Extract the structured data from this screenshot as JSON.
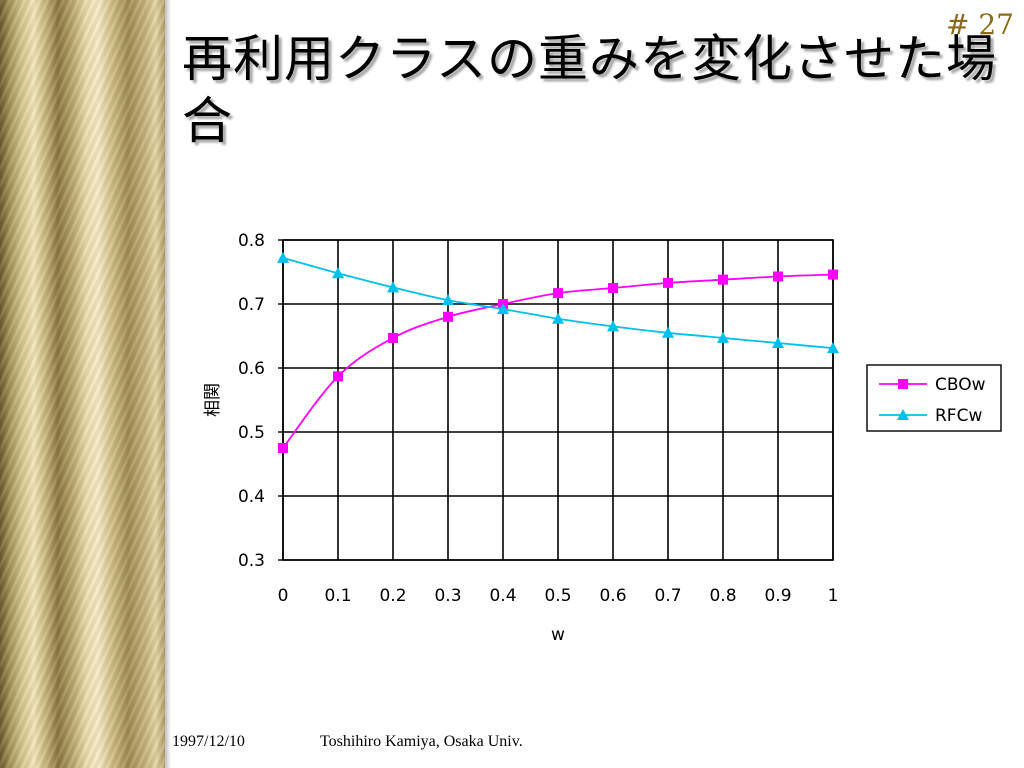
{
  "slide": {
    "title": "再利用クラスの重みを変化させた場合",
    "number": "# 27",
    "footer_date": "1997/12/10",
    "footer_author": "Toshihiro Kamiya, Osaka Univ."
  },
  "chart_data": {
    "type": "line",
    "title": "",
    "xlabel": "w",
    "ylabel": "相関",
    "x": [
      0,
      0.1,
      0.2,
      0.3,
      0.4,
      0.5,
      0.6,
      0.7,
      0.8,
      0.9,
      1
    ],
    "x_tick_labels": [
      "0",
      "0.1",
      "0.2",
      "0.3",
      "0.4",
      "0.5",
      "0.6",
      "0.7",
      "0.8",
      "0.9",
      "1"
    ],
    "ylim": [
      0.3,
      0.8
    ],
    "y_ticks": [
      0.3,
      0.4,
      0.5,
      0.6,
      0.7,
      0.8
    ],
    "y_tick_labels": [
      "0.3",
      "0.4",
      "0.5",
      "0.6",
      "0.7",
      "0.8"
    ],
    "grid": true,
    "legend_position": "right",
    "series": [
      {
        "name": "CBOw",
        "color": "#ff00ff",
        "marker": "square",
        "values": [
          0.475,
          0.587,
          0.647,
          0.68,
          0.7,
          0.717,
          0.725,
          0.733,
          0.738,
          0.743,
          0.746
        ]
      },
      {
        "name": "RFCw",
        "color": "#00c0ee",
        "marker": "triangle",
        "values": [
          0.772,
          0.748,
          0.726,
          0.706,
          0.692,
          0.677,
          0.665,
          0.655,
          0.647,
          0.639,
          0.631
        ]
      }
    ]
  }
}
